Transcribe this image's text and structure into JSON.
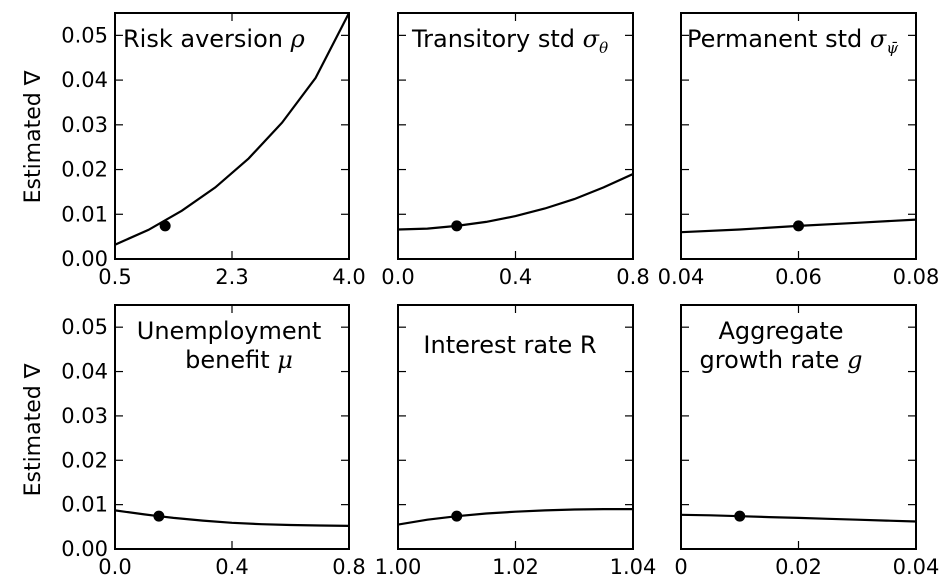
{
  "figure": {
    "ylabel": "Estimated ∇"
  },
  "chart_data": [
    {
      "type": "line",
      "title": "Risk aversion",
      "title_symbol": "ρ",
      "xlim": [
        0.5,
        4.0
      ],
      "ylim": [
        0.0,
        0.055
      ],
      "xticks": [
        "0.5",
        "2.3",
        "4.0"
      ],
      "yticks": [
        "0.00",
        "0.01",
        "0.02",
        "0.03",
        "0.04",
        "0.05"
      ],
      "x": [
        0.5,
        1.0,
        1.5,
        2.0,
        2.5,
        3.0,
        3.5,
        4.0
      ],
      "y": [
        0.0032,
        0.0065,
        0.0108,
        0.016,
        0.0225,
        0.0305,
        0.0405,
        0.055
      ],
      "marker": {
        "x": 1.25,
        "y": 0.0074
      }
    },
    {
      "type": "line",
      "title": "Transitory std",
      "title_symbol": "σ",
      "title_sub": "θ",
      "xlim": [
        0.0,
        0.8
      ],
      "ylim": [
        0.0,
        0.055
      ],
      "xticks": [
        "0.0",
        "0.4",
        "0.8"
      ],
      "yticks": [],
      "x": [
        0.0,
        0.1,
        0.2,
        0.3,
        0.4,
        0.5,
        0.6,
        0.7,
        0.8
      ],
      "y": [
        0.0066,
        0.0068,
        0.0074,
        0.0083,
        0.0096,
        0.0113,
        0.0134,
        0.016,
        0.019
      ],
      "marker": {
        "x": 0.2,
        "y": 0.0074
      }
    },
    {
      "type": "line",
      "title": "Permanent std",
      "title_symbol": "σ",
      "title_sub": "ψ̄",
      "xlim": [
        0.04,
        0.08
      ],
      "ylim": [
        0.0,
        0.055
      ],
      "xticks": [
        "0.04",
        "0.06",
        "0.08"
      ],
      "yticks": [],
      "x": [
        0.04,
        0.05,
        0.06,
        0.07,
        0.08
      ],
      "y": [
        0.006,
        0.0066,
        0.0074,
        0.0081,
        0.0088
      ],
      "marker": {
        "x": 0.06,
        "y": 0.0074
      }
    },
    {
      "type": "line",
      "title": "Unemployment",
      "title_line2": "benefit",
      "title_symbol": "μ",
      "xlim": [
        0.0,
        0.8
      ],
      "ylim": [
        0.0,
        0.055
      ],
      "xticks": [
        "0.0",
        "0.4",
        "0.8"
      ],
      "yticks": [
        "0.00",
        "0.01",
        "0.02",
        "0.03",
        "0.04",
        "0.05"
      ],
      "x": [
        0.0,
        0.1,
        0.15,
        0.2,
        0.3,
        0.4,
        0.5,
        0.6,
        0.7,
        0.8
      ],
      "y": [
        0.0087,
        0.0078,
        0.0074,
        0.007,
        0.0064,
        0.0059,
        0.0056,
        0.0054,
        0.0053,
        0.0052
      ],
      "marker": {
        "x": 0.15,
        "y": 0.0074
      }
    },
    {
      "type": "line",
      "title": "Interest rate R",
      "xlim": [
        1.0,
        1.04
      ],
      "ylim": [
        0.0,
        0.055
      ],
      "xticks": [
        "1.00",
        "1.02",
        "1.04"
      ],
      "yticks": [],
      "x": [
        1.0,
        1.005,
        1.01,
        1.015,
        1.02,
        1.025,
        1.03,
        1.035,
        1.04
      ],
      "y": [
        0.0055,
        0.0066,
        0.0074,
        0.008,
        0.0084,
        0.0087,
        0.0089,
        0.009,
        0.009
      ],
      "marker": {
        "x": 1.01,
        "y": 0.0074
      }
    },
    {
      "type": "line",
      "title": "Aggregate",
      "title_line2": "growth rate",
      "title_symbol": "g",
      "xlim": [
        0.0,
        0.04
      ],
      "ylim": [
        0.0,
        0.055
      ],
      "xticks": [
        "0",
        "0.02",
        "0.04"
      ],
      "yticks": [],
      "x": [
        0.0,
        0.005,
        0.01,
        0.015,
        0.02,
        0.025,
        0.03,
        0.035,
        0.04
      ],
      "y": [
        0.0077,
        0.0076,
        0.0074,
        0.0072,
        0.007,
        0.0068,
        0.0066,
        0.0064,
        0.0062
      ],
      "marker": {
        "x": 0.01,
        "y": 0.0074
      }
    }
  ]
}
